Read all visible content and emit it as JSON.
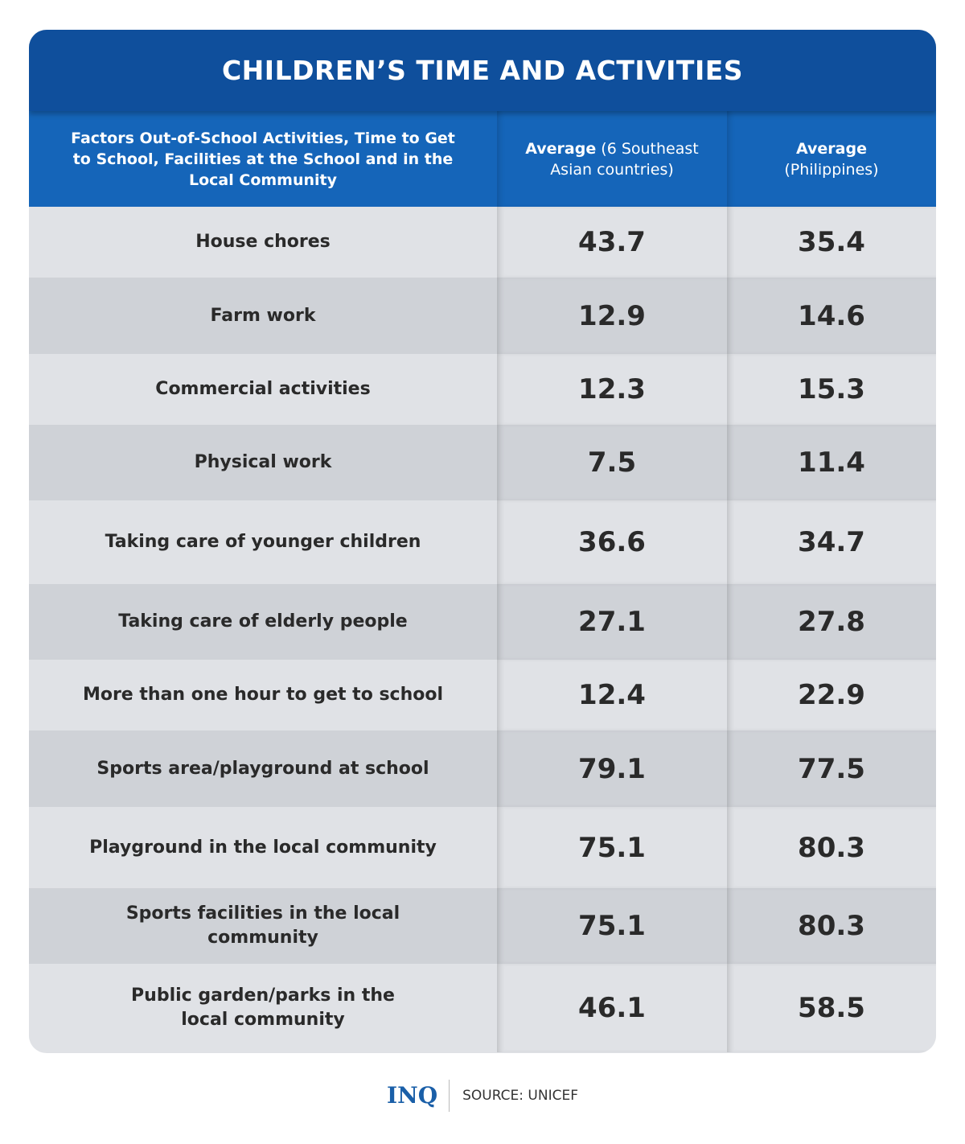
{
  "title": "CHILDREN’S TIME AND ACTIVITIES",
  "header": {
    "col1": "Factors Out-of-School Activities, Time to Get to School, Facilities at the School and in the Local Community",
    "col2_bold": "Average",
    "col2_rest": "(6 Southeast Asian countries)",
    "col3_bold": "Average",
    "col3_rest": "(Philippines)"
  },
  "chart_data": {
    "type": "table",
    "title": "CHILDREN’S TIME AND ACTIVITIES",
    "columns": [
      "Factors Out-of-School Activities, Time to Get to School, Facilities at the School and in the Local Community",
      "Average (6 Southeast Asian countries)",
      "Average (Philippines)"
    ],
    "rows": [
      {
        "factor": "House chores",
        "sea": "43.7",
        "ph": "35.4"
      },
      {
        "factor": "Farm work",
        "sea": "12.9",
        "ph": "14.6"
      },
      {
        "factor": "Commercial activities",
        "sea": "12.3",
        "ph": "15.3"
      },
      {
        "factor": "Physical work",
        "sea": "7.5",
        "ph": "11.4"
      },
      {
        "factor": "Taking care of younger children",
        "sea": "36.6",
        "ph": "34.7"
      },
      {
        "factor": "Taking care of elderly people",
        "sea": "27.1",
        "ph": "27.8"
      },
      {
        "factor": "More than one hour to get to school",
        "sea": "12.4",
        "ph": "22.9"
      },
      {
        "factor": "Sports area/playground at school",
        "sea": "79.1",
        "ph": "77.5"
      },
      {
        "factor": "Playground in the local community",
        "sea": "75.1",
        "ph": "80.3"
      },
      {
        "factor": "Sports facilities in the local community",
        "sea": "75.1",
        "ph": "80.3"
      },
      {
        "factor": "Public garden/parks in the local community",
        "sea": "46.1",
        "ph": "58.5"
      }
    ]
  },
  "footer": {
    "logo": "INQ",
    "source": "SOURCE: UNICEF"
  },
  "colors": {
    "title_bg": "#0f4f9c",
    "header_bg": "#1565b9",
    "row_light": "#e0e2e6",
    "row_dark": "#cfd2d7"
  }
}
